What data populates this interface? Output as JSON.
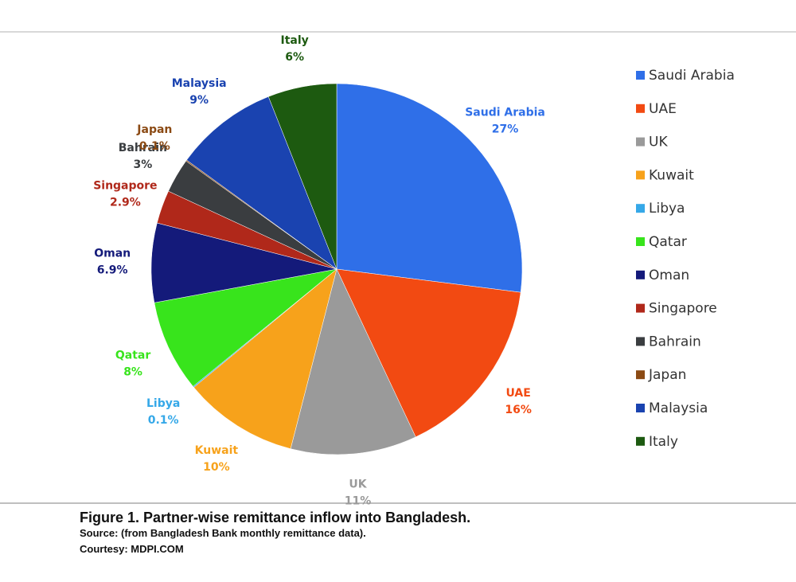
{
  "chart_data": {
    "type": "pie",
    "title": "Figure 1. Partner-wise remittance inflow into Bangladesh.",
    "source": "Source: (from Bangladesh Bank monthly remittance data).",
    "courtesy": "Courtesy: MDPI.COM",
    "categories": [
      "Saudi Arabia",
      "UAE",
      "UK",
      "Kuwait",
      "Libya",
      "Qatar",
      "Oman",
      "Singapore",
      "Bahrain",
      "Japan",
      "Malaysia",
      "Italy"
    ],
    "values": [
      27,
      16,
      11,
      10,
      0.1,
      8,
      6.9,
      2.9,
      3,
      0.1,
      9,
      6
    ],
    "value_labels": [
      "27%",
      "16%",
      "11%",
      "10%",
      "0.1%",
      "8%",
      "6.9%",
      "2.9%",
      "3%",
      "0.1%",
      "9%",
      "6%"
    ],
    "colors": [
      "#2f6fe8",
      "#f24a12",
      "#9a9a9a",
      "#f7a21b",
      "#35a8e8",
      "#38e41c",
      "#141a7a",
      "#b0281a",
      "#3a3d40",
      "#8b4a14",
      "#1a43b0",
      "#1d5a10"
    ]
  }
}
